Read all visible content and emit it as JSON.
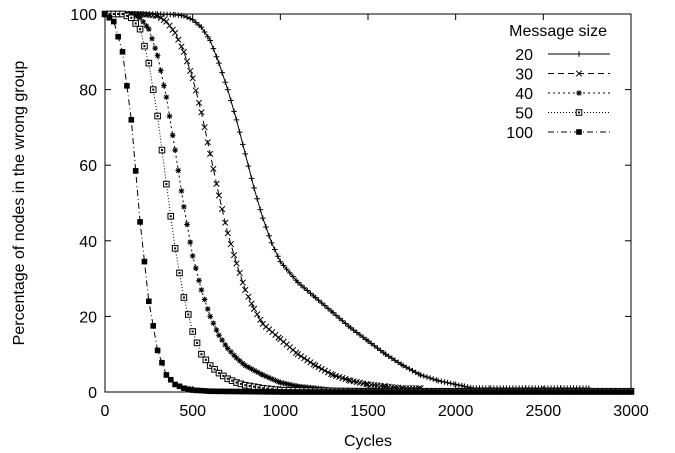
{
  "chart_data": {
    "type": "line",
    "xlabel": "Cycles",
    "ylabel": "Percentage of nodes in the wrong group",
    "xlim": [
      0,
      3000
    ],
    "ylim": [
      0,
      100
    ],
    "xticks": [
      0,
      500,
      1000,
      1500,
      2000,
      2500,
      3000
    ],
    "yticks": [
      0,
      20,
      40,
      60,
      80,
      100
    ],
    "grid": false,
    "legend": {
      "title": "Message size",
      "placement": "top-right"
    },
    "series": [
      {
        "name": "20",
        "dash": "",
        "marker": "plus",
        "points": [
          [
            0,
            100
          ],
          [
            100,
            100
          ],
          [
            200,
            100
          ],
          [
            300,
            100
          ],
          [
            400,
            99.8
          ],
          [
            450,
            99.5
          ],
          [
            500,
            98.5
          ],
          [
            550,
            96.5
          ],
          [
            600,
            93
          ],
          [
            650,
            87
          ],
          [
            700,
            80
          ],
          [
            750,
            72
          ],
          [
            800,
            63
          ],
          [
            850,
            54
          ],
          [
            900,
            46
          ],
          [
            950,
            39.5
          ],
          [
            1000,
            34.5
          ],
          [
            1100,
            29
          ],
          [
            1200,
            25
          ],
          [
            1300,
            21
          ],
          [
            1400,
            17
          ],
          [
            1500,
            13.5
          ],
          [
            1600,
            10
          ],
          [
            1700,
            7
          ],
          [
            1800,
            4.5
          ],
          [
            1900,
            3
          ],
          [
            2000,
            2
          ],
          [
            2050,
            1.5
          ],
          [
            2100,
            1
          ],
          [
            2200,
            1
          ],
          [
            2400,
            1
          ],
          [
            2600,
            1
          ],
          [
            2760,
            1
          ]
        ]
      },
      {
        "name": "30",
        "dash": "6,4",
        "marker": "x",
        "points": [
          [
            0,
            100
          ],
          [
            100,
            100
          ],
          [
            200,
            100
          ],
          [
            300,
            99.5
          ],
          [
            350,
            98
          ],
          [
            400,
            95
          ],
          [
            450,
            90
          ],
          [
            500,
            83
          ],
          [
            550,
            74
          ],
          [
            600,
            63
          ],
          [
            650,
            52
          ],
          [
            700,
            42
          ],
          [
            750,
            34
          ],
          [
            800,
            27
          ],
          [
            850,
            22
          ],
          [
            900,
            18
          ],
          [
            1000,
            14
          ],
          [
            1100,
            10
          ],
          [
            1200,
            7
          ],
          [
            1300,
            4.5
          ],
          [
            1400,
            3
          ],
          [
            1500,
            2
          ],
          [
            1600,
            1.5
          ],
          [
            1700,
            1
          ],
          [
            1800,
            1
          ]
        ]
      },
      {
        "name": "40",
        "dash": "2,3",
        "marker": "star",
        "points": [
          [
            0,
            100
          ],
          [
            100,
            100
          ],
          [
            150,
            100
          ],
          [
            200,
            99
          ],
          [
            250,
            96
          ],
          [
            300,
            89
          ],
          [
            350,
            78
          ],
          [
            400,
            64
          ],
          [
            450,
            49
          ],
          [
            500,
            36
          ],
          [
            550,
            27
          ],
          [
            600,
            20
          ],
          [
            650,
            15
          ],
          [
            700,
            11.5
          ],
          [
            750,
            9
          ],
          [
            800,
            7
          ],
          [
            900,
            4.5
          ],
          [
            1000,
            2.5
          ],
          [
            1100,
            1.5
          ],
          [
            1200,
            1
          ],
          [
            1300,
            0.5
          ],
          [
            1500,
            0.3
          ],
          [
            1800,
            0.3
          ],
          [
            2000,
            0.3
          ]
        ]
      },
      {
        "name": "50",
        "dash": "1,2",
        "marker": "square",
        "points": [
          [
            0,
            100
          ],
          [
            100,
            100
          ],
          [
            150,
            99
          ],
          [
            200,
            96
          ],
          [
            250,
            87
          ],
          [
            300,
            73
          ],
          [
            350,
            55
          ],
          [
            400,
            38
          ],
          [
            450,
            25
          ],
          [
            500,
            16
          ],
          [
            550,
            10
          ],
          [
            600,
            7
          ],
          [
            650,
            5
          ],
          [
            700,
            3.5
          ],
          [
            750,
            2.5
          ],
          [
            800,
            1.8
          ],
          [
            900,
            1
          ],
          [
            1000,
            0.5
          ],
          [
            1200,
            0.3
          ],
          [
            1500,
            0.2
          ],
          [
            2000,
            0.2
          ],
          [
            2500,
            0.2
          ],
          [
            3000,
            0.2
          ]
        ]
      },
      {
        "name": "100",
        "dash": "6,3,1,3",
        "marker": "filled-square",
        "points": [
          [
            0,
            100
          ],
          [
            50,
            98
          ],
          [
            100,
            90
          ],
          [
            150,
            72
          ],
          [
            200,
            45
          ],
          [
            250,
            24
          ],
          [
            300,
            11
          ],
          [
            350,
            4.5
          ],
          [
            400,
            2
          ],
          [
            450,
            1
          ],
          [
            500,
            0.5
          ],
          [
            600,
            0.2
          ],
          [
            1000,
            0
          ],
          [
            1500,
            0
          ],
          [
            2000,
            0
          ],
          [
            2500,
            0
          ],
          [
            3000,
            0
          ]
        ]
      }
    ]
  }
}
